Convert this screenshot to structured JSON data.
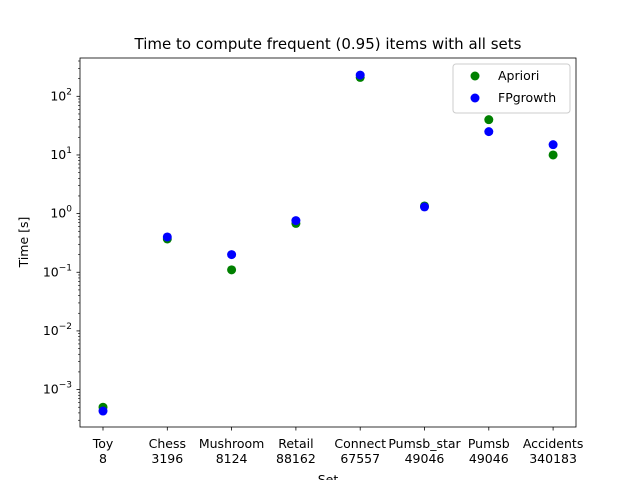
{
  "chart_data": {
    "type": "scatter",
    "title": "Time to compute frequent (0.95) items with all sets",
    "xlabel": "Set",
    "ylabel": "Time [s]",
    "y_scale": "log",
    "ylim": [
      0.00023,
      450
    ],
    "y_ticks": [
      {
        "exp": -3,
        "label": "10",
        "sup": "−3"
      },
      {
        "exp": -2,
        "label": "10",
        "sup": "−2"
      },
      {
        "exp": -1,
        "label": "10",
        "sup": "−1"
      },
      {
        "exp": 0,
        "label": "10",
        "sup": "0"
      },
      {
        "exp": 1,
        "label": "10",
        "sup": "1"
      },
      {
        "exp": 2,
        "label": "10",
        "sup": "2"
      }
    ],
    "categories": [
      {
        "name": "Toy",
        "size": "8"
      },
      {
        "name": "Chess",
        "size": "3196"
      },
      {
        "name": "Mushroom",
        "size": "8124"
      },
      {
        "name": "Retail",
        "size": "88162"
      },
      {
        "name": "Connect",
        "size": "67557"
      },
      {
        "name": "Pumsb_star",
        "size": "49046"
      },
      {
        "name": "Pumsb",
        "size": "49046"
      },
      {
        "name": "Accidents",
        "size": "340183"
      }
    ],
    "series": [
      {
        "name": "Apriori",
        "color": "#008000",
        "values": [
          0.0005,
          0.37,
          0.11,
          0.68,
          210,
          1.35,
          40,
          10
        ]
      },
      {
        "name": "FPgrowth",
        "color": "#0000ff",
        "values": [
          0.00043,
          0.4,
          0.2,
          0.76,
          230,
          1.3,
          25,
          15
        ]
      }
    ],
    "legend_position": "top-right",
    "grid": false
  }
}
